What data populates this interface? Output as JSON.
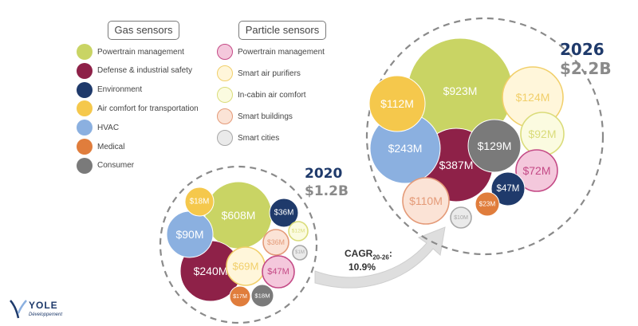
{
  "legend": {
    "gas_title": "Gas sensors",
    "particle_title": "Particle sensors",
    "gas_items": [
      {
        "label": "Powertrain management",
        "color": "#c9d464"
      },
      {
        "label": "Defense & industrial safety",
        "color": "#8e2148"
      },
      {
        "label": "Environment",
        "color": "#1f3a6b"
      },
      {
        "label": "Air comfort for transportation",
        "color": "#f5c84c"
      },
      {
        "label": "HVAC",
        "color": "#8bb0e0"
      },
      {
        "label": "Medical",
        "color": "#e07d3c"
      },
      {
        "label": "Consumer",
        "color": "#7a7a7a"
      }
    ],
    "particle_items": [
      {
        "label": "Powertrain management",
        "fill": "#f4c8dc",
        "stroke": "#c44a86"
      },
      {
        "label": "Smart air purifiers",
        "fill": "#fff6da",
        "stroke": "#f1cf6a"
      },
      {
        "label": "In-cabin air comfort",
        "fill": "#fbfbe0",
        "stroke": "#dadc7a"
      },
      {
        "label": "Smart buildings",
        "fill": "#fbe3d6",
        "stroke": "#e49a78"
      },
      {
        "label": "Smart cities",
        "fill": "#eaeaea",
        "stroke": "#a8a8a8"
      }
    ]
  },
  "chart_data": {
    "type": "bubble",
    "cagr_label": "CAGR",
    "cagr_sub": "20-26",
    "cagr_value": "10.9%",
    "years": [
      {
        "year": "2020",
        "total": "$1.2B",
        "bubbles": [
          {
            "segment": "Gas: Powertrain management",
            "label": "$608M",
            "value": 608
          },
          {
            "segment": "Gas: Defense & industrial safety",
            "label": "$240M",
            "value": 240
          },
          {
            "segment": "Gas: HVAC",
            "label": "$90M",
            "value": 90
          },
          {
            "segment": "Gas: Air comfort for transportation",
            "label": "$18M",
            "value": 18
          },
          {
            "segment": "Gas: Environment",
            "label": "$36M",
            "value": 36
          },
          {
            "segment": "Particle: In-cabin air comfort",
            "label": "$12M",
            "value": 12
          },
          {
            "segment": "Particle: Smart buildings",
            "label": "$36M",
            "value": 36
          },
          {
            "segment": "Particle: Smart cities",
            "label": "$1M",
            "value": 1
          },
          {
            "segment": "Particle: Smart air purifiers",
            "label": "$69M",
            "value": 69
          },
          {
            "segment": "Particle: Powertrain management",
            "label": "$47M",
            "value": 47
          },
          {
            "segment": "Gas: Medical",
            "label": "$17M",
            "value": 17
          },
          {
            "segment": "Gas: Consumer",
            "label": "$18M",
            "value": 18
          }
        ]
      },
      {
        "year": "2026",
        "total": "$2.2B",
        "bubbles": [
          {
            "segment": "Gas: Powertrain management",
            "label": "$923M",
            "value": 923
          },
          {
            "segment": "Gas: Defense & industrial safety",
            "label": "$387M",
            "value": 387
          },
          {
            "segment": "Gas: HVAC",
            "label": "$243M",
            "value": 243
          },
          {
            "segment": "Gas: Air comfort for transportation",
            "label": "$112M",
            "value": 112
          },
          {
            "segment": "Particle: Smart air purifiers",
            "label": "$124M",
            "value": 124
          },
          {
            "segment": "Gas: Consumer",
            "label": "$129M",
            "value": 129
          },
          {
            "segment": "Particle: In-cabin air comfort",
            "label": "$92M",
            "value": 92
          },
          {
            "segment": "Particle: Powertrain management",
            "label": "$72M",
            "value": 72
          },
          {
            "segment": "Gas: Environment",
            "label": "$47M",
            "value": 47
          },
          {
            "segment": "Particle: Smart buildings",
            "label": "$110M",
            "value": 110
          },
          {
            "segment": "Gas: Medical",
            "label": "$23M",
            "value": 23
          },
          {
            "segment": "Particle: Smart cities",
            "label": "$10M",
            "value": 10
          }
        ]
      }
    ]
  },
  "logo": {
    "name": "YOLE",
    "sub": "Développement"
  }
}
